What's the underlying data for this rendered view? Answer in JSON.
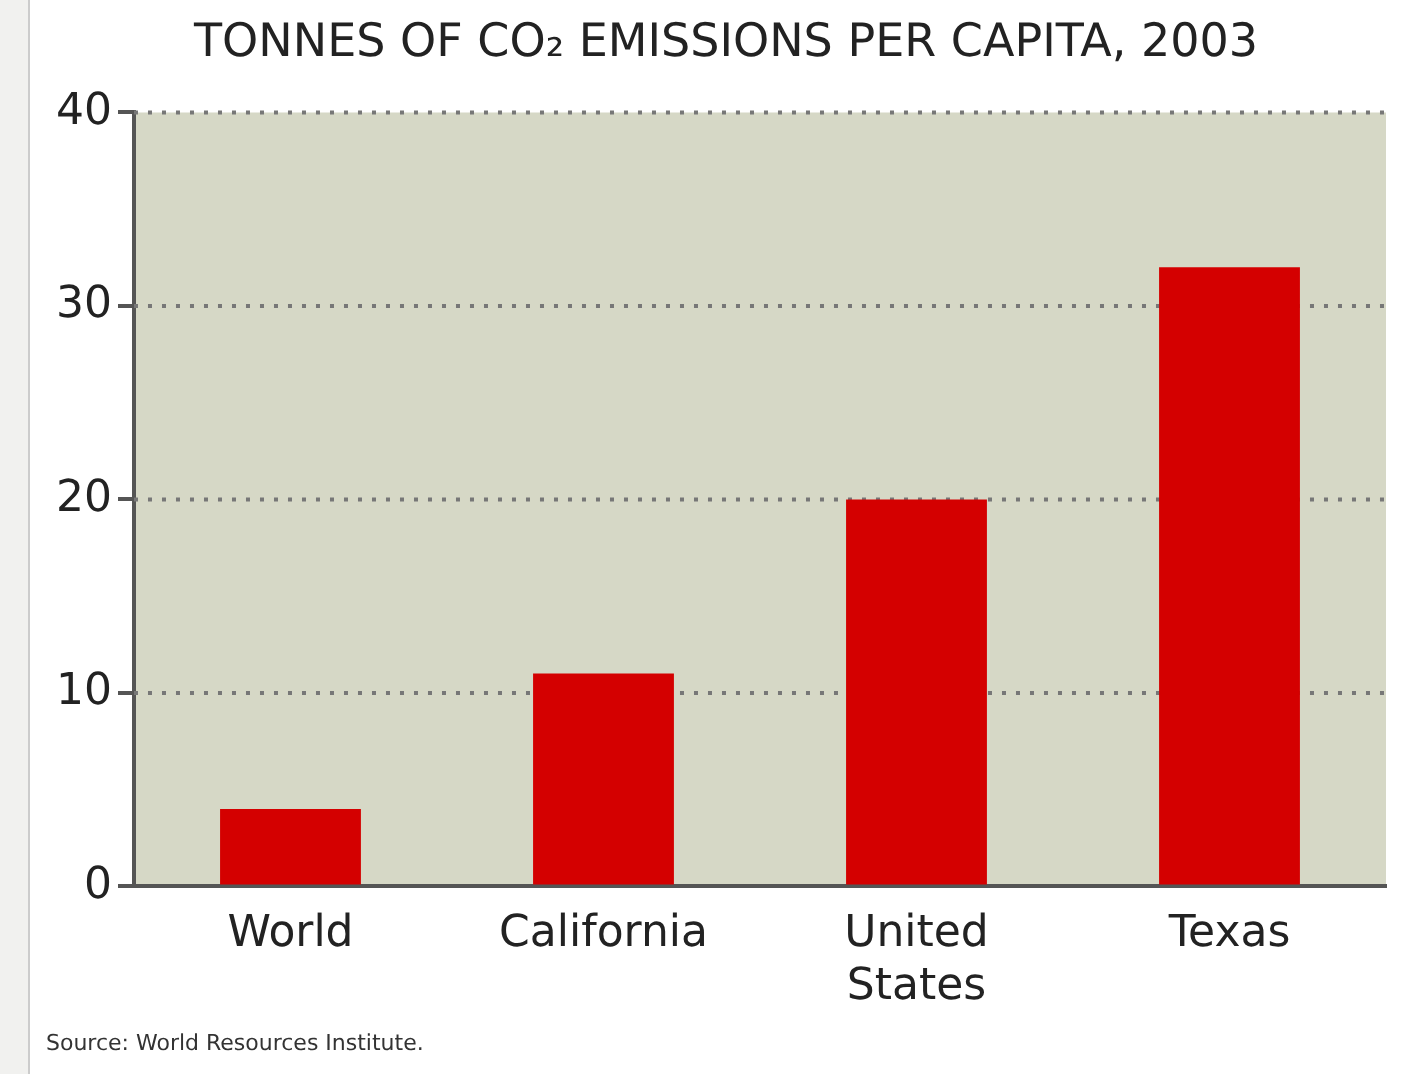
{
  "chart_data": {
    "type": "bar",
    "title": "TONNES OF CO₂ EMISSIONS PER CAPITA, 2003",
    "categories": [
      "World",
      "California",
      "United States",
      "Texas"
    ],
    "values": [
      4,
      11,
      20,
      32
    ],
    "color": "#d40000",
    "ylim": [
      0,
      40
    ],
    "yticks": [
      0,
      10,
      20,
      30,
      40
    ],
    "grid": "y",
    "annotations": [
      "Source: World Resources Institute."
    ]
  }
}
